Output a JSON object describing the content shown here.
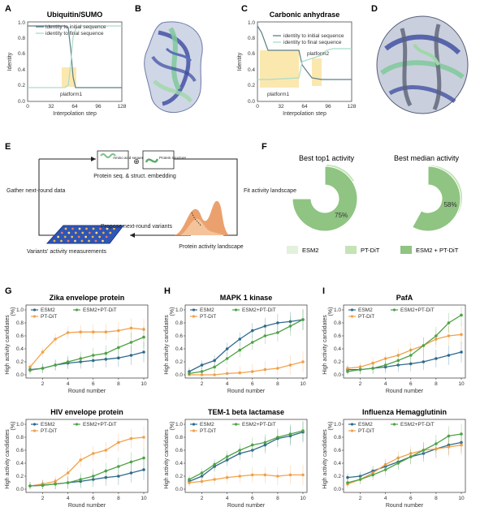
{
  "panel_labels": {
    "A": "A",
    "B": "B",
    "C": "C",
    "D": "D",
    "E": "E",
    "F": "F",
    "G": "G",
    "H": "H",
    "I": "I"
  },
  "colors": {
    "initial": "#5b7f86",
    "final": "#a9dcc9",
    "platform": "#fbe5a6",
    "esm2": "#2f6a8c",
    "ptdit": "#f2a14a",
    "combo": "#4ea245",
    "pie_esm2": "#e3f1dc",
    "pie_ptdit": "#c5e3b6",
    "pie_combo": "#8fc482"
  },
  "panelA": {
    "title": "Ubiquitin/SUMO",
    "ylabel": "Identity",
    "xlabel": "Interpolation step",
    "legend": [
      "identity to initial sequence",
      "identity to final sequence"
    ],
    "annotation": "platform1",
    "xticks": [
      "0",
      "32",
      "64",
      "96",
      "128"
    ],
    "yticks": [
      "0.0",
      "0.2",
      "0.4",
      "0.6",
      "0.8",
      "1.0"
    ]
  },
  "panelC": {
    "title": "Carbonic anhydrase",
    "ylabel": "Identity",
    "xlabel": "Interpolation step",
    "legend": [
      "identity to initial sequence",
      "identity to final sequence"
    ],
    "annotations": [
      "platform1",
      "platform2"
    ],
    "xticks": [
      "0",
      "32",
      "64",
      "96",
      "128"
    ],
    "yticks": [
      "0.0",
      "0.2",
      "0.4",
      "0.6",
      "0.8",
      "1.0"
    ]
  },
  "panelE": {
    "amino": "Amino acid sequence",
    "structure": "Protein structure",
    "oplus": "⊕",
    "embedding": "Protein seq. & struct. embedding",
    "gather": "Gather next-round data",
    "fit": "Fit activity landscape",
    "propose": "Propose next-round variants",
    "variants": "Variants' activity measurements",
    "landscape": "Protein activity landscape"
  },
  "panelF": {
    "titles": [
      "Best top1 activity",
      "Best median activity"
    ],
    "legend": [
      "ESM2",
      "PT-DiT",
      "ESM2 + PT-DiT"
    ],
    "chart_data": [
      {
        "type": "pie",
        "title": "Best top1 activity",
        "labels": [
          "ESM2",
          "PT-DiT",
          "ESM2 + PT-DiT"
        ],
        "values": [
          8,
          17,
          75
        ],
        "value_labels": [
          "8%",
          "17%",
          "75%"
        ]
      },
      {
        "type": "pie",
        "title": "Best median activity",
        "labels": [
          "ESM2",
          "PT-DiT",
          "ESM2 + PT-DiT"
        ],
        "values": [
          9,
          33,
          58
        ],
        "value_labels": [
          "9%",
          "33%",
          "58%"
        ]
      }
    ]
  },
  "line_common": {
    "xlabel": "Round number",
    "ylabel": "High activity candidates",
    "unit": "(%)",
    "legend": [
      "ESM2",
      "ESM2+PT-DiT",
      "PT-DiT"
    ],
    "xticks": [
      "2",
      "4",
      "6",
      "8",
      "10"
    ],
    "yticks": [
      "0.0",
      "0.2",
      "0.4",
      "0.6",
      "0.8",
      "1.0"
    ]
  },
  "chart_data": [
    {
      "type": "line",
      "title": "Zika envelope protein",
      "x": [
        1,
        2,
        3,
        4,
        5,
        6,
        7,
        8,
        9,
        10
      ],
      "ylim": [
        0,
        1
      ],
      "series": [
        {
          "name": "ESM2",
          "values": [
            0.08,
            0.1,
            0.15,
            0.18,
            0.2,
            0.22,
            0.24,
            0.26,
            0.3,
            0.35
          ]
        },
        {
          "name": "PT-DiT",
          "values": [
            0.12,
            0.35,
            0.55,
            0.65,
            0.66,
            0.66,
            0.66,
            0.68,
            0.72,
            0.7
          ]
        },
        {
          "name": "ESM2+PT-DiT",
          "values": [
            0.07,
            0.1,
            0.15,
            0.2,
            0.25,
            0.3,
            0.33,
            0.42,
            0.5,
            0.58
          ]
        }
      ]
    },
    {
      "type": "line",
      "title": "MAPK 1 kinase",
      "x": [
        1,
        2,
        3,
        4,
        5,
        6,
        7,
        8,
        9,
        10
      ],
      "ylim": [
        0,
        1
      ],
      "series": [
        {
          "name": "ESM2",
          "values": [
            0.05,
            0.15,
            0.22,
            0.4,
            0.55,
            0.68,
            0.75,
            0.8,
            0.82,
            0.85
          ]
        },
        {
          "name": "PT-DiT",
          "values": [
            0.0,
            0.0,
            0.0,
            0.02,
            0.03,
            0.05,
            0.08,
            0.1,
            0.15,
            0.2
          ]
        },
        {
          "name": "ESM2+PT-DiT",
          "values": [
            0.02,
            0.05,
            0.12,
            0.25,
            0.38,
            0.5,
            0.6,
            0.65,
            0.75,
            0.85
          ]
        }
      ]
    },
    {
      "type": "line",
      "title": "PafA",
      "x": [
        1,
        2,
        3,
        4,
        5,
        6,
        7,
        8,
        9,
        10
      ],
      "ylim": [
        0,
        1
      ],
      "series": [
        {
          "name": "ESM2",
          "values": [
            0.08,
            0.08,
            0.1,
            0.12,
            0.15,
            0.17,
            0.2,
            0.25,
            0.3,
            0.35
          ]
        },
        {
          "name": "PT-DiT",
          "values": [
            0.1,
            0.12,
            0.18,
            0.25,
            0.3,
            0.38,
            0.45,
            0.55,
            0.6,
            0.62
          ]
        },
        {
          "name": "ESM2+PT-DiT",
          "values": [
            0.05,
            0.08,
            0.1,
            0.15,
            0.22,
            0.3,
            0.45,
            0.6,
            0.8,
            0.92
          ]
        }
      ]
    },
    {
      "type": "line",
      "title": "HIV envelope protein",
      "x": [
        1,
        2,
        3,
        4,
        5,
        6,
        7,
        8,
        9,
        10
      ],
      "ylim": [
        0,
        1
      ],
      "series": [
        {
          "name": "ESM2",
          "values": [
            0.05,
            0.06,
            0.08,
            0.1,
            0.12,
            0.15,
            0.18,
            0.2,
            0.25,
            0.3
          ]
        },
        {
          "name": "PT-DiT",
          "values": [
            0.05,
            0.08,
            0.12,
            0.25,
            0.45,
            0.55,
            0.6,
            0.72,
            0.78,
            0.8
          ]
        },
        {
          "name": "ESM2+PT-DiT",
          "values": [
            0.05,
            0.06,
            0.08,
            0.1,
            0.15,
            0.2,
            0.28,
            0.35,
            0.42,
            0.48
          ]
        }
      ]
    },
    {
      "type": "line",
      "title": "TEM-1 beta lactamase",
      "x": [
        1,
        2,
        3,
        4,
        5,
        6,
        7,
        8,
        9,
        10
      ],
      "ylim": [
        0,
        1
      ],
      "series": [
        {
          "name": "ESM2",
          "values": [
            0.12,
            0.2,
            0.35,
            0.45,
            0.55,
            0.6,
            0.68,
            0.78,
            0.82,
            0.88
          ]
        },
        {
          "name": "PT-DiT",
          "values": [
            0.1,
            0.12,
            0.15,
            0.18,
            0.2,
            0.22,
            0.22,
            0.2,
            0.22,
            0.22
          ]
        },
        {
          "name": "ESM2+PT-DiT",
          "values": [
            0.15,
            0.25,
            0.38,
            0.5,
            0.6,
            0.68,
            0.72,
            0.8,
            0.85,
            0.9
          ]
        }
      ]
    },
    {
      "type": "line",
      "title": "Influenza Hemagglutinin",
      "x": [
        1,
        2,
        3,
        4,
        5,
        6,
        7,
        8,
        9,
        10
      ],
      "ylim": [
        0,
        1
      ],
      "series": [
        {
          "name": "ESM2",
          "values": [
            0.18,
            0.2,
            0.28,
            0.35,
            0.42,
            0.5,
            0.55,
            0.62,
            0.68,
            0.72
          ]
        },
        {
          "name": "PT-DiT",
          "values": [
            0.08,
            0.15,
            0.25,
            0.38,
            0.48,
            0.55,
            0.6,
            0.62,
            0.65,
            0.68
          ]
        },
        {
          "name": "ESM2+PT-DiT",
          "values": [
            0.1,
            0.15,
            0.22,
            0.3,
            0.4,
            0.5,
            0.6,
            0.7,
            0.82,
            0.85
          ]
        }
      ]
    }
  ]
}
